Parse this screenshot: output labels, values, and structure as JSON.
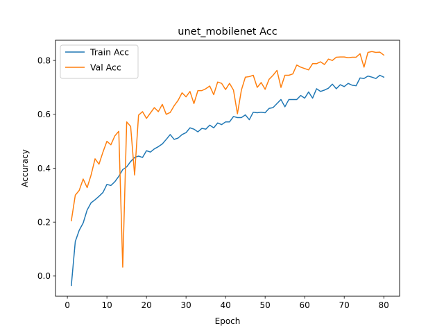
{
  "chart_data": {
    "type": "line",
    "title": "unet_mobilenet Acc",
    "xlabel": "Epoch",
    "ylabel": "Accuracy",
    "xlim": [
      -3,
      84
    ],
    "ylim": [
      -0.075,
      0.875
    ],
    "xticks": [
      0,
      10,
      20,
      30,
      40,
      50,
      60,
      70,
      80
    ],
    "yticks": [
      0.0,
      0.2,
      0.4,
      0.6,
      0.8
    ],
    "ytick_labels": [
      "0.0",
      "0.2",
      "0.4",
      "0.6",
      "0.8"
    ],
    "grid": false,
    "legend_position": "top-left",
    "x": [
      1,
      2,
      3,
      4,
      5,
      6,
      7,
      8,
      9,
      10,
      11,
      12,
      13,
      14,
      15,
      16,
      17,
      18,
      19,
      20,
      21,
      22,
      23,
      24,
      25,
      26,
      27,
      28,
      29,
      30,
      31,
      32,
      33,
      34,
      35,
      36,
      37,
      38,
      39,
      40,
      41,
      42,
      43,
      44,
      45,
      46,
      47,
      48,
      49,
      50,
      51,
      52,
      53,
      54,
      55,
      56,
      57,
      58,
      59,
      60,
      61,
      62,
      63,
      64,
      65,
      66,
      67,
      68,
      69,
      70,
      71,
      72,
      73,
      74,
      75,
      76,
      77,
      78,
      79,
      80
    ],
    "series": [
      {
        "name": "Train Acc",
        "color": "#1f77b4",
        "values": [
          -0.035,
          0.128,
          0.17,
          0.197,
          0.245,
          0.272,
          0.283,
          0.296,
          0.31,
          0.34,
          0.336,
          0.35,
          0.37,
          0.395,
          0.405,
          0.425,
          0.44,
          0.445,
          0.44,
          0.465,
          0.46,
          0.472,
          0.48,
          0.49,
          0.507,
          0.525,
          0.507,
          0.512,
          0.525,
          0.532,
          0.55,
          0.545,
          0.535,
          0.548,
          0.545,
          0.56,
          0.55,
          0.568,
          0.562,
          0.572,
          0.572,
          0.592,
          0.588,
          0.588,
          0.598,
          0.58,
          0.608,
          0.606,
          0.608,
          0.606,
          0.622,
          0.625,
          0.64,
          0.655,
          0.628,
          0.655,
          0.655,
          0.655,
          0.67,
          0.66,
          0.683,
          0.66,
          0.695,
          0.685,
          0.69,
          0.697,
          0.712,
          0.695,
          0.71,
          0.703,
          0.715,
          0.708,
          0.706,
          0.735,
          0.733,
          0.742,
          0.738,
          0.733,
          0.745,
          0.738
        ]
      },
      {
        "name": "Val Acc",
        "color": "#ff7f0e",
        "values": [
          0.205,
          0.3,
          0.318,
          0.36,
          0.328,
          0.375,
          0.435,
          0.415,
          0.46,
          0.5,
          0.487,
          0.52,
          0.537,
          0.033,
          0.572,
          0.555,
          0.375,
          0.597,
          0.61,
          0.585,
          0.605,
          0.625,
          0.61,
          0.637,
          0.6,
          0.607,
          0.632,
          0.652,
          0.68,
          0.665,
          0.685,
          0.64,
          0.688,
          0.688,
          0.695,
          0.705,
          0.673,
          0.72,
          0.715,
          0.692,
          0.715,
          0.69,
          0.602,
          0.69,
          0.738,
          0.74,
          0.745,
          0.7,
          0.718,
          0.693,
          0.73,
          0.745,
          0.763,
          0.7,
          0.745,
          0.745,
          0.75,
          0.783,
          0.775,
          0.77,
          0.765,
          0.788,
          0.788,
          0.795,
          0.785,
          0.805,
          0.8,
          0.812,
          0.813,
          0.813,
          0.81,
          0.812,
          0.812,
          0.825,
          0.775,
          0.83,
          0.833,
          0.83,
          0.831,
          0.82
        ]
      }
    ]
  }
}
